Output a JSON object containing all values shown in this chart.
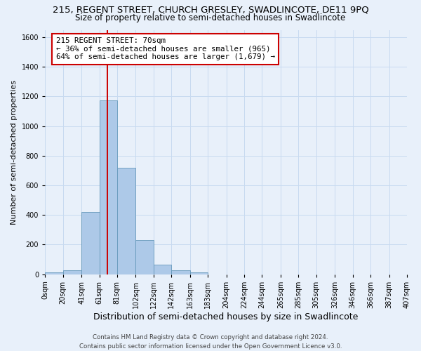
{
  "title_line1": "215, REGENT STREET, CHURCH GRESLEY, SWADLINCOTE, DE11 9PQ",
  "title_line2": "Size of property relative to semi-detached houses in Swadlincote",
  "xlabel": "Distribution of semi-detached houses by size in Swadlincote",
  "ylabel": "Number of semi-detached properties",
  "footer_line1": "Contains HM Land Registry data © Crown copyright and database right 2024.",
  "footer_line2": "Contains public sector information licensed under the Open Government Licence v3.0.",
  "annotation_title": "215 REGENT STREET: 70sqm",
  "annotation_line1": "← 36% of semi-detached houses are smaller (965)",
  "annotation_line2": "64% of semi-detached houses are larger (1,679) →",
  "bar_edges": [
    0,
    20,
    41,
    61,
    81,
    102,
    122,
    142,
    163,
    183,
    204,
    224,
    244,
    265,
    285,
    305,
    326,
    346,
    366,
    387,
    407
  ],
  "bar_heights": [
    10,
    27,
    420,
    1175,
    718,
    228,
    62,
    28,
    12,
    0,
    0,
    0,
    0,
    0,
    0,
    0,
    0,
    0,
    0,
    0
  ],
  "bar_color": "#adc9e8",
  "bar_edge_color": "#6699bb",
  "property_size": 70,
  "vline_color": "#cc0000",
  "ylim": [
    0,
    1650
  ],
  "yticks": [
    0,
    200,
    400,
    600,
    800,
    1000,
    1200,
    1400,
    1600
  ],
  "xtick_labels": [
    "0sqm",
    "20sqm",
    "41sqm",
    "61sqm",
    "81sqm",
    "102sqm",
    "122sqm",
    "142sqm",
    "163sqm",
    "183sqm",
    "204sqm",
    "224sqm",
    "244sqm",
    "265sqm",
    "285sqm",
    "305sqm",
    "326sqm",
    "346sqm",
    "366sqm",
    "387sqm",
    "407sqm"
  ],
  "grid_color": "#c8daf0",
  "background_color": "#e8f0fa",
  "annotation_box_facecolor": "#ffffff",
  "annotation_box_edgecolor": "#cc0000",
  "title_fontsize": 9.5,
  "subtitle_fontsize": 8.5,
  "xlabel_fontsize": 9,
  "ylabel_fontsize": 8,
  "tick_fontsize": 7,
  "annotation_fontsize": 7.8,
  "footer_fontsize": 6.2
}
